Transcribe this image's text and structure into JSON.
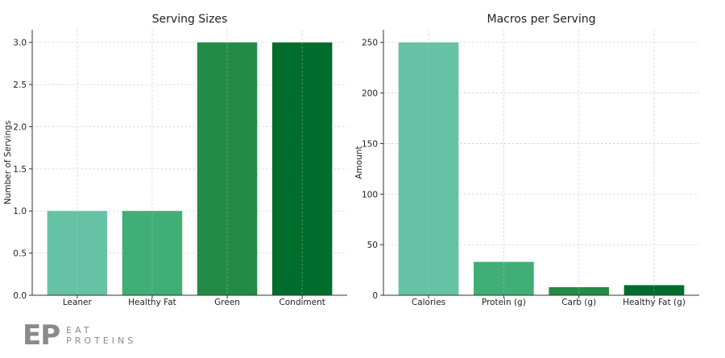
{
  "chart_data": [
    {
      "type": "bar",
      "title": "Serving Sizes",
      "xlabel": "",
      "ylabel": "Number of Servings",
      "categories": [
        "Leaner",
        "Healthy Fat",
        "Green",
        "Condiment"
      ],
      "values": [
        1,
        1,
        3,
        3
      ],
      "colors": [
        "#66c2a4",
        "#41ae76",
        "#238b45",
        "#006d2c"
      ],
      "ylim": [
        0,
        3.15
      ],
      "yticks": [
        0,
        0.5,
        1.0,
        1.5,
        2.0,
        2.5,
        3.0
      ],
      "ytick_labels": [
        "0.0",
        "0.5",
        "1.0",
        "1.5",
        "2.0",
        "2.5",
        "3.0"
      ],
      "grid": true
    },
    {
      "type": "bar",
      "title": "Macros per Serving",
      "xlabel": "",
      "ylabel": "Amount",
      "categories": [
        "Calories",
        "Protein (g)",
        "Carb (g)",
        "Healthy Fat (g)"
      ],
      "values": [
        250,
        33,
        8,
        10
      ],
      "colors": [
        "#66c2a4",
        "#41ae76",
        "#238b45",
        "#006d2c"
      ],
      "ylim": [
        0,
        262.5
      ],
      "yticks": [
        0,
        50,
        100,
        150,
        200,
        250
      ],
      "ytick_labels": [
        "0",
        "50",
        "100",
        "150",
        "200",
        "250"
      ],
      "grid": true
    }
  ],
  "logo": {
    "mark": "EP",
    "line1": "EAT",
    "line2": "PROTEINS"
  }
}
